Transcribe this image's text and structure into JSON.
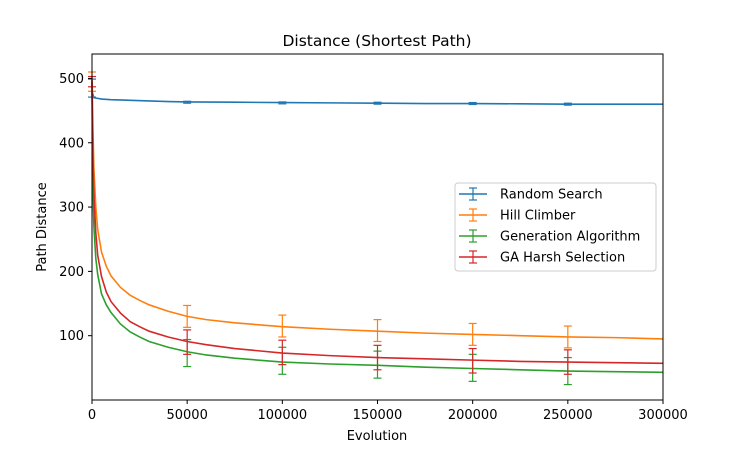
{
  "chart_data": {
    "type": "line",
    "title": "Distance (Shortest Path)",
    "xlabel": "Evolution",
    "ylabel": "Path Distance",
    "xlim": [
      0,
      300000
    ],
    "ylim": [
      0,
      538
    ],
    "xticks": [
      0,
      50000,
      100000,
      150000,
      200000,
      250000,
      300000
    ],
    "xtick_labels": [
      "0",
      "50000",
      "100000",
      "150000",
      "200000",
      "250000",
      "300000"
    ],
    "yticks": [
      100,
      200,
      300,
      400,
      500
    ],
    "ytick_labels": [
      "100",
      "200",
      "300",
      "400",
      "500"
    ],
    "grid": false,
    "legend_position": "center-right",
    "series": [
      {
        "name": "Random Search",
        "color": "#1f77b4",
        "x": [
          0,
          200,
          1000,
          3000,
          5000,
          10000,
          20000,
          30000,
          40000,
          50000,
          75000,
          100000,
          125000,
          150000,
          175000,
          200000,
          225000,
          250000,
          275000,
          300000
        ],
        "y": [
          498,
          478,
          470,
          469,
          468,
          467,
          466,
          465,
          464,
          463.5,
          463,
          462.5,
          462,
          461.5,
          461,
          461,
          460.5,
          460,
          460,
          460
        ],
        "errors": [
          {
            "x": 0,
            "y": 485,
            "err": 14
          },
          {
            "x": 50000,
            "y": 463,
            "err": 1.5
          },
          {
            "x": 100000,
            "y": 462,
            "err": 1.5
          },
          {
            "x": 150000,
            "y": 461.5,
            "err": 1.5
          },
          {
            "x": 200000,
            "y": 461,
            "err": 1.5
          },
          {
            "x": 250000,
            "y": 460,
            "err": 1.5
          }
        ]
      },
      {
        "name": "Hill Climber",
        "color": "#ff7f0e",
        "x": [
          0,
          500,
          1000,
          2000,
          3000,
          5000,
          7500,
          10000,
          15000,
          20000,
          25000,
          30000,
          40000,
          50000,
          60000,
          75000,
          100000,
          125000,
          150000,
          175000,
          200000,
          225000,
          250000,
          275000,
          300000
        ],
        "y": [
          498,
          420,
          360,
          300,
          265,
          230,
          208,
          193,
          175,
          163,
          155,
          148,
          138,
          130,
          125,
          120,
          114,
          110,
          107,
          104,
          102,
          100,
          98,
          97,
          95
        ],
        "errors": [
          {
            "x": 0,
            "y": 495,
            "err": 15
          },
          {
            "x": 50000,
            "y": 130,
            "err": 17
          },
          {
            "x": 100000,
            "y": 115,
            "err": 17
          },
          {
            "x": 150000,
            "y": 108,
            "err": 17
          },
          {
            "x": 200000,
            "y": 102,
            "err": 17
          },
          {
            "x": 250000,
            "y": 98,
            "err": 17
          }
        ]
      },
      {
        "name": "Generation Algorithm",
        "color": "#2ca02c",
        "x": [
          0,
          500,
          1000,
          2000,
          3000,
          5000,
          7500,
          10000,
          15000,
          20000,
          25000,
          30000,
          40000,
          50000,
          60000,
          75000,
          100000,
          125000,
          150000,
          175000,
          200000,
          225000,
          250000,
          275000,
          300000
        ],
        "y": [
          480,
          330,
          270,
          220,
          195,
          165,
          148,
          136,
          118,
          106,
          98,
          91,
          82,
          75,
          70,
          65,
          59,
          56,
          54,
          51,
          49,
          47,
          45,
          44,
          43
        ],
        "errors": [
          {
            "x": 50000,
            "y": 73,
            "err": 21
          },
          {
            "x": 100000,
            "y": 61,
            "err": 21
          },
          {
            "x": 150000,
            "y": 55,
            "err": 21
          },
          {
            "x": 200000,
            "y": 50,
            "err": 21
          },
          {
            "x": 250000,
            "y": 45,
            "err": 21
          }
        ]
      },
      {
        "name": "GA Harsh Selection",
        "color": "#d62728",
        "x": [
          0,
          500,
          1000,
          2000,
          3000,
          5000,
          7500,
          10000,
          15000,
          20000,
          25000,
          30000,
          40000,
          50000,
          60000,
          75000,
          100000,
          125000,
          150000,
          175000,
          200000,
          225000,
          250000,
          275000,
          300000
        ],
        "y": [
          495,
          380,
          320,
          260,
          225,
          192,
          168,
          153,
          135,
          122,
          114,
          107,
          98,
          91,
          86,
          80,
          73,
          69,
          66,
          64,
          62,
          60,
          59,
          58,
          57
        ],
        "errors": [
          {
            "x": 0,
            "y": 495,
            "err": 8
          },
          {
            "x": 50000,
            "y": 90,
            "err": 19
          },
          {
            "x": 100000,
            "y": 74,
            "err": 19
          },
          {
            "x": 150000,
            "y": 66,
            "err": 19
          },
          {
            "x": 200000,
            "y": 61,
            "err": 19
          },
          {
            "x": 250000,
            "y": 59,
            "err": 19
          }
        ]
      }
    ]
  }
}
